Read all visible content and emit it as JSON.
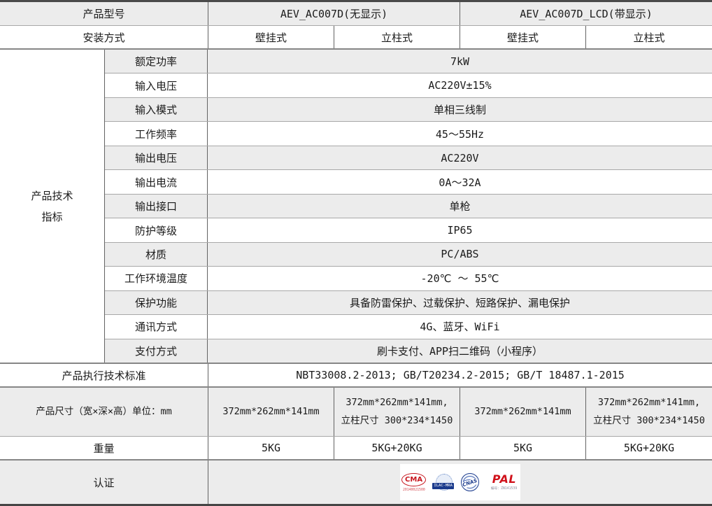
{
  "colors": {
    "stripe_gray": "#ececec",
    "border_dark": "#4a4a4a",
    "cma_red": "#c8161e",
    "pal_red": "#d0121b",
    "cert_blue": "#1a3a8c"
  },
  "header": {
    "model_label": "产品型号",
    "models": [
      "AEV_AC007D(无显示)",
      "AEV_AC007D_LCD(带显示)"
    ],
    "install_label": "安装方式",
    "install_types": [
      "壁挂式",
      "立柱式",
      "壁挂式",
      "立柱式"
    ]
  },
  "tech": {
    "section_label_line1": "产品技术",
    "section_label_line2": "指标",
    "rows": [
      {
        "name": "额定功率",
        "value": "7kW"
      },
      {
        "name": "输入电压",
        "value": "AC220V±15%"
      },
      {
        "name": "输入模式",
        "value": "单相三线制"
      },
      {
        "name": "工作频率",
        "value": "45～55Hz"
      },
      {
        "name": "输出电压",
        "value": "AC220V"
      },
      {
        "name": "输出电流",
        "value": "0A～32A"
      },
      {
        "name": "输出接口",
        "value": "单枪"
      },
      {
        "name": "防护等级",
        "value": "IP65"
      },
      {
        "name": "材质",
        "value": "PC/ABS"
      },
      {
        "name": "工作环境温度",
        "value": "-20℃ ～ 55℃"
      },
      {
        "name": "保护功能",
        "value": "具备防雷保护、过载保护、短路保护、漏电保护"
      },
      {
        "name": "通讯方式",
        "value": "4G、蓝牙、WiFi"
      },
      {
        "name": "支付方式",
        "value": "刷卡支付、APP扫二维码（小程序）"
      }
    ]
  },
  "standards": {
    "label": "产品执行技术标准",
    "value": "NBT33008.2-2013; GB/T20234.2-2015; GB/T 18487.1-2015"
  },
  "dimensions": {
    "label": "产品尺寸（宽×深×高）单位：mm",
    "cells": [
      {
        "line1": "372mm*262mm*141mm",
        "line2": ""
      },
      {
        "line1": "372mm*262mm*141mm,",
        "line2": "立柱尺寸 300*234*1450"
      },
      {
        "line1": "372mm*262mm*141mm",
        "line2": ""
      },
      {
        "line1": "372mm*262mm*141mm,",
        "line2": "立柱尺寸 300*234*1450"
      }
    ]
  },
  "weight": {
    "label": "重量",
    "cells": [
      "5KG",
      "5KG+20KG",
      "5KG",
      "5KG+20KG"
    ]
  },
  "certification": {
    "label": "认证",
    "logos": [
      {
        "name": "CMA",
        "caption": "20140021500"
      },
      {
        "name": "ILAC-MRA",
        "caption": ""
      },
      {
        "name": "CNAS",
        "caption": ""
      },
      {
        "name": "PAL",
        "caption": "编号：ZN141539"
      }
    ]
  }
}
